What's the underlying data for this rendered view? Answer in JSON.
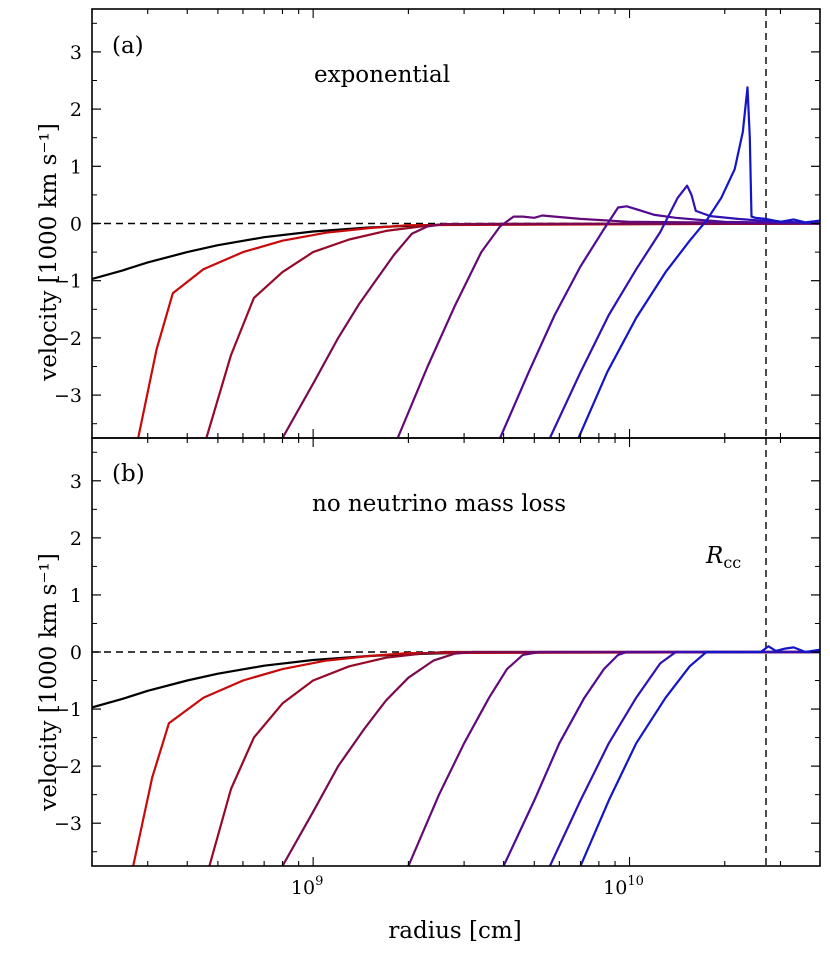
{
  "chart_data": [
    {
      "panel": "(a)",
      "type": "line",
      "title": "",
      "annotation": "exponential",
      "xlabel": "radius [cm]",
      "ylabel": "velocity [1000 km s⁻¹]",
      "xscale": "log",
      "xlim": [
        200000000.0,
        40000000000.0
      ],
      "ylim": [
        -3.75,
        3.75
      ],
      "yticks": [
        -3,
        -2,
        -1,
        0,
        1,
        2,
        3
      ],
      "ytick_labels": [
        "−3",
        "−2",
        "−1",
        "0",
        "1",
        "2",
        "3"
      ],
      "xtick_labels": [
        {
          "base": "10",
          "exp": "9",
          "value": 1000000000.0
        },
        {
          "base": "10",
          "exp": "10",
          "value": 10000000000.0
        }
      ],
      "reference_lines": {
        "zero_velocity": 0,
        "R_cc": 27000000000.0
      },
      "series": [
        {
          "name": "t0",
          "color": "#000000",
          "x": [
            200000000.0,
            250000000.0,
            300000000.0,
            400000000.0,
            500000000.0,
            700000000.0,
            1000000000.0,
            1500000000.0,
            2000000000.0,
            3000000000.0,
            40000000000.0
          ],
          "y": [
            -0.97,
            -0.82,
            -0.68,
            -0.5,
            -0.38,
            -0.24,
            -0.14,
            -0.07,
            -0.04,
            -0.01,
            0.0
          ]
        },
        {
          "name": "t1",
          "color": "#c80a0a",
          "x": [
            280000000.0,
            320000000.0,
            360000000.0,
            450000000.0,
            600000000.0,
            800000000.0,
            1100000000.0,
            1500000000.0,
            2000000000.0,
            40000000000.0
          ],
          "y": [
            -3.75,
            -2.2,
            -1.22,
            -0.8,
            -0.5,
            -0.3,
            -0.16,
            -0.08,
            -0.03,
            0.0
          ]
        },
        {
          "name": "t2",
          "color": "#960a28",
          "x": [
            460000000.0,
            550000000.0,
            650000000.0,
            800000000.0,
            1000000000.0,
            1300000000.0,
            1700000000.0,
            2200000000.0,
            2600000000.0,
            40000000000.0
          ],
          "y": [
            -3.75,
            -2.3,
            -1.3,
            -0.85,
            -0.5,
            -0.28,
            -0.13,
            -0.05,
            -0.01,
            0.0
          ]
        },
        {
          "name": "t3",
          "color": "#7a0a50",
          "x": [
            800000000.0,
            1000000000.0,
            1200000000.0,
            1400000000.0,
            1600000000.0,
            1800000000.0,
            2050000000.0,
            2300000000.0,
            2600000000.0,
            40000000000.0
          ],
          "y": [
            -3.75,
            -2.8,
            -2.0,
            -1.4,
            -0.95,
            -0.55,
            -0.18,
            -0.05,
            -0.01,
            0.0
          ]
        },
        {
          "name": "t4",
          "color": "#640a78",
          "x": [
            1850000000.0,
            2300000000.0,
            2800000000.0,
            3400000000.0,
            3900000000.0,
            4300000000.0,
            4600000000.0,
            5000000000.0,
            5300000000.0,
            5800000000.0,
            7000000000.0,
            10000000000.0,
            40000000000.0
          ],
          "y": [
            -3.75,
            -2.5,
            -1.45,
            -0.5,
            -0.05,
            0.12,
            0.12,
            0.1,
            0.14,
            0.12,
            0.08,
            0.03,
            0.0
          ]
        },
        {
          "name": "t5",
          "color": "#500a96",
          "x": [
            3900000000.0,
            4800000000.0,
            5800000000.0,
            7000000000.0,
            8300000000.0,
            9200000000.0,
            9800000000.0,
            10500000000.0,
            12000000000.0,
            14000000000.0,
            17000000000.0,
            20000000000.0,
            40000000000.0
          ],
          "y": [
            -3.75,
            -2.6,
            -1.6,
            -0.75,
            -0.1,
            0.28,
            0.3,
            0.25,
            0.15,
            0.1,
            0.06,
            0.03,
            0.0
          ]
        },
        {
          "name": "t6",
          "color": "#3210b4",
          "x": [
            5600000000.0,
            7000000000.0,
            8600000000.0,
            10500000000.0,
            12500000000.0,
            14200000000.0,
            15200000000.0,
            15700000000.0,
            16200000000.0,
            18000000000.0,
            22000000000.0,
            26000000000.0,
            40000000000.0
          ],
          "y": [
            -3.75,
            -2.6,
            -1.6,
            -0.8,
            -0.15,
            0.45,
            0.66,
            0.5,
            0.22,
            0.13,
            0.08,
            0.05,
            0.0
          ]
        },
        {
          "name": "t7",
          "color": "#1414c8",
          "x": [
            6900000000.0,
            8500000000.0,
            10500000000.0,
            13000000000.0,
            15500000000.0,
            17500000000.0,
            19500000000.0,
            21500000000.0,
            22800000000.0,
            23600000000.0,
            24000000000.0,
            24300000000.0,
            25000000000.0,
            27000000000.0,
            30000000000.0,
            33000000000.0,
            36000000000.0,
            40000000000.0
          ],
          "y": [
            -3.75,
            -2.6,
            -1.65,
            -0.85,
            -0.3,
            0.05,
            0.45,
            0.95,
            1.6,
            2.38,
            1.5,
            0.12,
            0.1,
            0.08,
            0.03,
            0.07,
            0.02,
            0.05
          ]
        }
      ]
    },
    {
      "panel": "(b)",
      "type": "line",
      "title": "",
      "annotation": "no neutrino mass loss",
      "xlabel": "radius [cm]",
      "ylabel": "velocity [1000 km s⁻¹]",
      "xscale": "log",
      "xlim": [
        200000000.0,
        40000000000.0
      ],
      "ylim": [
        -3.75,
        3.75
      ],
      "yticks": [
        -3,
        -2,
        -1,
        0,
        1,
        2,
        3
      ],
      "ytick_labels": [
        "−3",
        "−2",
        "−1",
        "0",
        "1",
        "2",
        "3"
      ],
      "xtick_labels": [
        {
          "base": "10",
          "exp": "9",
          "value": 1000000000.0
        },
        {
          "base": "10",
          "exp": "10",
          "value": 10000000000.0
        }
      ],
      "reference_lines": {
        "zero_velocity": 0,
        "R_cc": 27000000000.0
      },
      "r_cc_label": {
        "base": "R",
        "sub": "cc"
      },
      "series": [
        {
          "name": "t0",
          "color": "#000000",
          "x": [
            200000000.0,
            250000000.0,
            300000000.0,
            400000000.0,
            500000000.0,
            700000000.0,
            1000000000.0,
            1500000000.0,
            2000000000.0,
            3000000000.0,
            40000000000.0
          ],
          "y": [
            -0.97,
            -0.82,
            -0.68,
            -0.5,
            -0.38,
            -0.24,
            -0.14,
            -0.07,
            -0.04,
            -0.01,
            0.0
          ]
        },
        {
          "name": "t1",
          "color": "#c80a0a",
          "x": [
            270000000.0,
            310000000.0,
            350000000.0,
            450000000.0,
            600000000.0,
            800000000.0,
            1100000000.0,
            1500000000.0,
            2000000000.0,
            40000000000.0
          ],
          "y": [
            -3.75,
            -2.2,
            -1.25,
            -0.8,
            -0.5,
            -0.3,
            -0.15,
            -0.07,
            -0.02,
            0.0
          ]
        },
        {
          "name": "t2",
          "color": "#960a28",
          "x": [
            470000000.0,
            550000000.0,
            650000000.0,
            800000000.0,
            1000000000.0,
            1300000000.0,
            1700000000.0,
            2200000000.0,
            2600000000.0,
            40000000000.0
          ],
          "y": [
            -3.75,
            -2.4,
            -1.5,
            -0.9,
            -0.5,
            -0.25,
            -0.1,
            -0.03,
            0.0,
            0.0
          ]
        },
        {
          "name": "t3",
          "color": "#7a0a50",
          "x": [
            800000000.0,
            1000000000.0,
            1200000000.0,
            1450000000.0,
            1700000000.0,
            2000000000.0,
            2400000000.0,
            2800000000.0,
            3200000000.0,
            40000000000.0
          ],
          "y": [
            -3.75,
            -2.8,
            -2.0,
            -1.35,
            -0.85,
            -0.45,
            -0.15,
            -0.03,
            0.0,
            0.0
          ]
        },
        {
          "name": "t4",
          "color": "#640a78",
          "x": [
            2000000000.0,
            2500000000.0,
            3000000000.0,
            3600000000.0,
            4100000000.0,
            4600000000.0,
            5200000000.0,
            40000000000.0
          ],
          "y": [
            -3.75,
            -2.5,
            -1.6,
            -0.8,
            -0.3,
            -0.05,
            0.0,
            0.0
          ]
        },
        {
          "name": "t5",
          "color": "#500a96",
          "x": [
            4000000000.0,
            5000000000.0,
            6000000000.0,
            7200000000.0,
            8300000000.0,
            9200000000.0,
            9800000000.0,
            40000000000.0
          ],
          "y": [
            -3.75,
            -2.6,
            -1.6,
            -0.8,
            -0.3,
            -0.05,
            0.0,
            0.0
          ]
        },
        {
          "name": "t6",
          "color": "#3210b4",
          "x": [
            5600000000.0,
            7000000000.0,
            8600000000.0,
            10500000000.0,
            12500000000.0,
            14000000000.0,
            40000000000.0
          ],
          "y": [
            -3.75,
            -2.6,
            -1.6,
            -0.8,
            -0.2,
            0.0,
            0.0
          ]
        },
        {
          "name": "t7",
          "color": "#1414c8",
          "x": [
            7000000000.0,
            8600000000.0,
            10500000000.0,
            13000000000.0,
            15500000000.0,
            17500000000.0,
            26000000000.0,
            27500000000.0,
            29000000000.0,
            31000000000.0,
            33000000000.0,
            36000000000.0,
            40000000000.0
          ],
          "y": [
            -3.75,
            -2.6,
            -1.6,
            -0.8,
            -0.25,
            0.0,
            0.0,
            0.1,
            0.02,
            0.06,
            0.08,
            0.0,
            0.04
          ]
        }
      ]
    }
  ]
}
